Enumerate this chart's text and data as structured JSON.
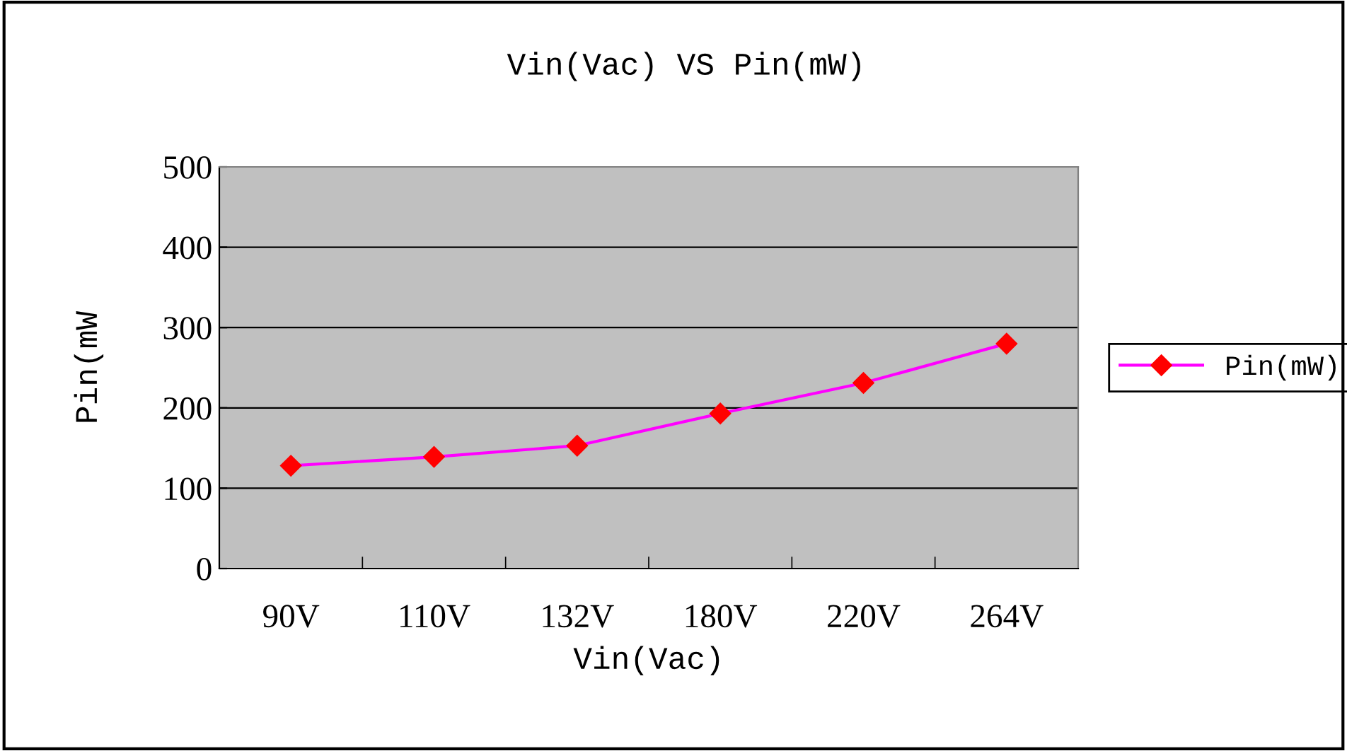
{
  "chart_data": {
    "type": "line",
    "title": "Vin(Vac) VS Pin(mW)",
    "xlabel": "Vin(Vac)",
    "ylabel": "Pin(mW",
    "categories": [
      "90V",
      "110V",
      "132V",
      "180V",
      "220V",
      "264V"
    ],
    "series": [
      {
        "name": "Pin(mW)",
        "color": "#ff00ff",
        "values": [
          128,
          139,
          153,
          193,
          231,
          280
        ]
      }
    ],
    "ylim": [
      0,
      500
    ],
    "yticks": [
      0,
      100,
      200,
      300,
      400,
      500
    ],
    "grid": "y",
    "legend": "right",
    "marker": "diamond",
    "line_style": "solid"
  }
}
